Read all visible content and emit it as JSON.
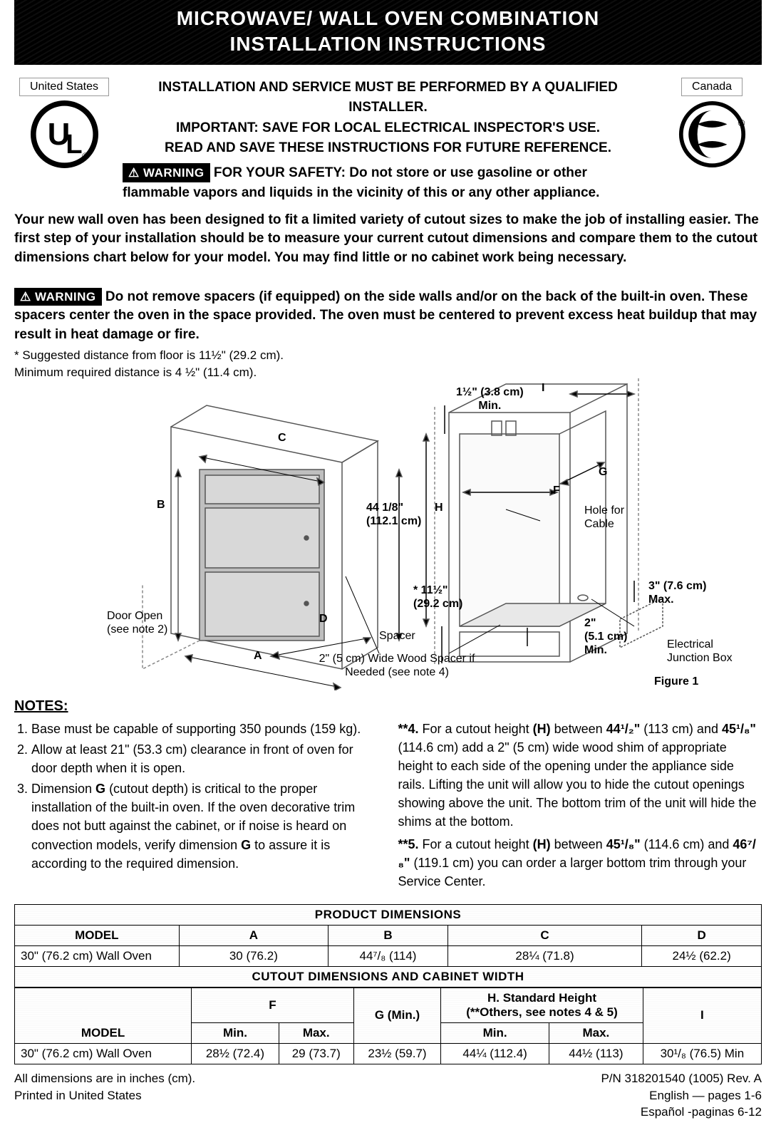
{
  "title": {
    "line1": "MICROWAVE/ WALL OVEN COMBINATION",
    "line2": "INSTALLATION INSTRUCTIONS"
  },
  "cert_left": {
    "label": "United States",
    "logo": "UL"
  },
  "cert_right": {
    "label": "Canada",
    "logo": "CSA"
  },
  "header": {
    "line1": "INSTALLATION AND SERVICE MUST BE PERFORMED BY A QUALIFIED INSTALLER.",
    "line2": "IMPORTANT: SAVE FOR LOCAL ELECTRICAL INSPECTOR'S USE.",
    "line3": "READ AND SAVE THESE INSTRUCTIONS FOR FUTURE REFERENCE.",
    "warning_label": "WARNING",
    "safety": "FOR YOUR SAFETY: Do not store or use gasoline or other flammable vapors and liquids in the vicinity of this or any other appliance."
  },
  "intro": "Your new wall oven has been designed to fit a limited variety of cutout sizes to make the job of installing easier. The first step of your installation should be to measure your current cutout dimensions and compare them to the cutout dimensions chart below for your model. You may find little or no cabinet work being necessary.",
  "warning2": {
    "label": "WARNING",
    "text": "Do not remove spacers (if equipped) on the side walls and/or on the back of the built-in oven. These spacers center the oven in the space provided.  The oven must be centered to prevent excess heat buildup that may result in heat damage or fire."
  },
  "suggested_dist": "* Suggested distance from floor is 11½\" (29.2 cm).\n   Minimum required distance is 4 ½\" (11.4 cm).",
  "diagram": {
    "lbl_top_min": "1½\" (3.8 cm)\nMin.",
    "lbl_I": "I",
    "lbl_C": "C",
    "lbl_B": "B",
    "lbl_G": "G",
    "lbl_F": "F",
    "lbl_H": "H",
    "lbl_height": "44 1/8\"\n(112.1 cm)",
    "lbl_hole": "Hole for\nCable",
    "lbl_side": "3\" (7.6 cm)\nMax.",
    "lbl_star": "*  11½\"\n(29.2 cm)",
    "lbl_2in": "2\"\n(5.1 cm)\nMin.",
    "lbl_door": "Door Open\n(see note 2)",
    "lbl_D": "D",
    "lbl_A": "A",
    "lbl_spacer": "Spacer",
    "lbl_wood": "2\" (5 cm) Wide Wood Spacer if\nNeeded (see note 4)",
    "lbl_junction": "Electrical\nJunction Box",
    "lbl_figure": "Figure 1"
  },
  "notes": {
    "title": "NOTES:",
    "left": [
      "Base must be capable of supporting 350 pounds (159 kg).",
      "Allow at least 21\" (53.3 cm) clearance in front of oven  for door depth when it is open.",
      "Dimension <b>G</b> (cutout depth) is critical to the proper installation of the built-in oven. If the oven decorative trim does not butt against the cabinet, or if noise is heard on convection models, verify dimension <b>G</b> to assure it is according to the required dimension."
    ],
    "right": [
      {
        "num": "**4.",
        "text": "For a cutout height <b>(H)</b> between <b>44¹/₂\"</b> (113 cm) and <b>45¹/₈\"</b> (114.6 cm) add a 2\" (5 cm) wide wood shim of appropriate height to each side of the opening under the appliance side rails. Lifting the unit will allow you to hide the cutout openings showing above the unit. The bottom trim of the unit will hide the shims at the bottom."
      },
      {
        "num": "**5.",
        "text": "For a cutout height <b>(H)</b> between <b>45¹/₈\"</b> (114.6 cm) and <b>46⁷/₈\"</b> (119.1 cm) you can order a larger bottom trim through your Service Center."
      }
    ]
  },
  "table1": {
    "title": "PRODUCT DIMENSIONS",
    "headers": [
      "MODEL",
      "A",
      "B",
      "C",
      "D"
    ],
    "row": [
      "30\" (76.2 cm) Wall Oven",
      "30 (76.2)",
      "44⁷/₈  (114)",
      "28¼ (71.8)",
      "24½ (62.2)"
    ]
  },
  "table2": {
    "title": "CUTOUT DIMENSIONS AND CABINET WIDTH",
    "headers_top": [
      "",
      "F",
      "G (Min.)",
      "H. Standard Height\n(**Others, see notes 4 & 5)",
      "I"
    ],
    "headers_sub": [
      "MODEL",
      "Min.",
      "Max.",
      "",
      "Min.",
      "Max.",
      ""
    ],
    "row": [
      "30\" (76.2 cm) Wall Oven",
      "28½ (72.4)",
      "29 (73.7)",
      "23½ (59.7)",
      "44¼ (112.4)",
      "44½ (113)",
      "30¹/₈  (76.5) Min"
    ]
  },
  "footer": {
    "left1": "All dimensions are in inches (cm).",
    "left2": "Printed in United States",
    "right1": "P/N 318201540 (1005) Rev. A",
    "right2": "English — pages 1-6",
    "right3": "Español -paginas 6-12"
  },
  "colors": {
    "black": "#000000",
    "white": "#ffffff",
    "diagram_stroke": "#555555",
    "diagram_fill": "#bfbfbf"
  }
}
